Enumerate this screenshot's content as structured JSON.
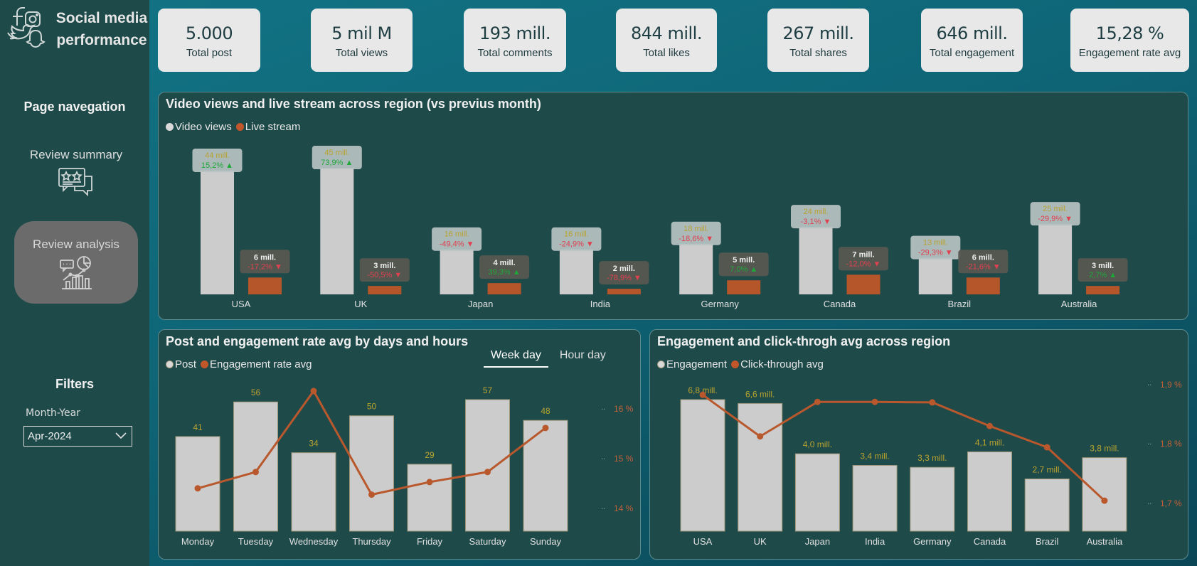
{
  "app": {
    "title": "Social media performance",
    "title_line1": "Social media",
    "title_line2": "performance",
    "brand_icons": [
      "facebook-icon",
      "instagram-icon",
      "twitter-icon",
      "snapchat-icon"
    ]
  },
  "navigation": {
    "heading": "Page navegation",
    "items": [
      {
        "label": "Review summary",
        "icon": "review-stars-chat-icon",
        "active": false
      },
      {
        "label": "Review analysis",
        "icon": "analytics-chart-icon",
        "active": true
      }
    ]
  },
  "filters": {
    "heading": "Filters",
    "month_year": {
      "label": "Month-Year",
      "value": "Apr-2024"
    }
  },
  "kpis": [
    {
      "value": "5.000",
      "label": "Total post"
    },
    {
      "value": "5 mil M",
      "label": "Total views"
    },
    {
      "value": "193 mill.",
      "label": "Total comments"
    },
    {
      "value": "844 mill.",
      "label": "Total likes"
    },
    {
      "value": "267 mill.",
      "label": "Total shares"
    },
    {
      "value": "646 mill.",
      "label": "Total engagement"
    },
    {
      "value": "15,28 %",
      "label": "Engagement rate avg"
    }
  ],
  "colors": {
    "bar_light": "#cccccc",
    "bar_accent": "#b5552a",
    "label_gold": "#b8a22e",
    "up_green": "#1fa83a",
    "down_red": "#e0404f",
    "axis_orange": "#c0603a"
  },
  "panels": {
    "top": {
      "title": "Video views and live stream across region (vs previus month)",
      "legend": [
        {
          "label": "Video views",
          "color": "#d9d9d9"
        },
        {
          "label": "Live stream",
          "color": "#c0562a"
        }
      ]
    },
    "bottom_left": {
      "title": "Post and engagement rate avg by days and hours",
      "legend": [
        {
          "label": "Post",
          "color": "#d9d9d9"
        },
        {
          "label": "Engagement rate avg",
          "color": "#c0562a"
        }
      ],
      "tabs": [
        {
          "label": "Week day",
          "active": true
        },
        {
          "label": "Hour day",
          "active": false
        }
      ]
    },
    "bottom_right": {
      "title": "Engagement and click-throgh avg across region",
      "legend": [
        {
          "label": "Engagement",
          "color": "#d9d9d9"
        },
        {
          "label": "Click-through avg",
          "color": "#c0562a"
        }
      ]
    }
  },
  "chart_data": [
    {
      "type": "bar",
      "title": "Video views and live stream across region (vs previus month)",
      "categories": [
        "USA",
        "UK",
        "Japan",
        "India",
        "Germany",
        "Canada",
        "Brazil",
        "Australia"
      ],
      "series": [
        {
          "name": "Video views",
          "values": [
            44,
            45,
            16,
            16,
            18,
            24,
            13,
            25
          ],
          "unit": "mill.",
          "labels": [
            "44 mill.",
            "45 mill.",
            "16 mill.",
            "16 mill.",
            "18 mill.",
            "24 mill.",
            "13 mill.",
            "25 mill."
          ],
          "change": [
            "15,2%",
            "73,9%",
            "-49,4%",
            "-24,9%",
            "-18,6%",
            "-3,1%",
            "-29,3%",
            "-29,9%"
          ],
          "trend": [
            "up",
            "up",
            "down",
            "down",
            "down",
            "down",
            "down",
            "down"
          ]
        },
        {
          "name": "Live stream",
          "values": [
            6,
            3,
            4,
            2,
            5,
            7,
            6,
            3
          ],
          "unit": "mill.",
          "labels": [
            "6 mill.",
            "3 mill.",
            "4 mill.",
            "2 mill.",
            "5 mill.",
            "7 mill.",
            "6 mill.",
            "3 mill."
          ],
          "change": [
            "-17,2%",
            "-50,5%",
            "39,3%",
            "-78,9%",
            "7,0%",
            "-12,0%",
            "-21,6%",
            "2,7%"
          ],
          "trend": [
            "down",
            "down",
            "up",
            "down",
            "up",
            "down",
            "down",
            "up"
          ]
        }
      ],
      "xlabel": "",
      "ylabel": "",
      "ylim": [
        0,
        45
      ],
      "grid": false,
      "legend": "top-left"
    },
    {
      "type": "bar",
      "title": "Post and engagement rate avg by days and hours",
      "categories": [
        "Monday",
        "Tuesday",
        "Wednesday",
        "Thursday",
        "Friday",
        "Saturday",
        "Sunday"
      ],
      "series": [
        {
          "name": "Post",
          "type": "bar",
          "values": [
            41,
            56,
            34,
            50,
            29,
            57,
            48
          ]
        },
        {
          "name": "Engagement rate avg",
          "type": "line",
          "axis": "right",
          "values": [
            14.08,
            14.47,
            16.4,
            13.93,
            14.23,
            14.47,
            15.52
          ]
        }
      ],
      "y_right_ticks": [
        "16 %",
        "15 %",
        "14 %"
      ],
      "y_right_range": [
        13.5,
        16.5
      ],
      "ylim": [
        0,
        57
      ],
      "grid": false,
      "legend": "top-left"
    },
    {
      "type": "bar",
      "title": "Engagement and click-throgh avg across region",
      "categories": [
        "USA",
        "UK",
        "Japan",
        "India",
        "Germany",
        "Canada",
        "Brazil",
        "Australia"
      ],
      "series": [
        {
          "name": "Engagement",
          "type": "bar",
          "values": [
            6.8,
            6.6,
            4.0,
            3.4,
            3.3,
            4.1,
            2.7,
            3.8
          ],
          "labels": [
            "6,8 mill.",
            "6,6 mill.",
            "4,0 mill.",
            "3,4 mill.",
            "3,3 mill.",
            "4,1 mill.",
            "2,7 mill.",
            "3,8 mill."
          ]
        },
        {
          "name": "Click-through avg",
          "type": "line",
          "axis": "right",
          "values": [
            1.9,
            1.812,
            1.885,
            1.885,
            1.884,
            1.834,
            1.789,
            1.676
          ]
        }
      ],
      "y_right_ticks": [
        "1,9 %",
        "1,8 %",
        "1,7 %"
      ],
      "y_right_range": [
        1.64,
        1.92
      ],
      "ylim": [
        0,
        6.8
      ],
      "grid": false,
      "legend": "top-left"
    }
  ]
}
